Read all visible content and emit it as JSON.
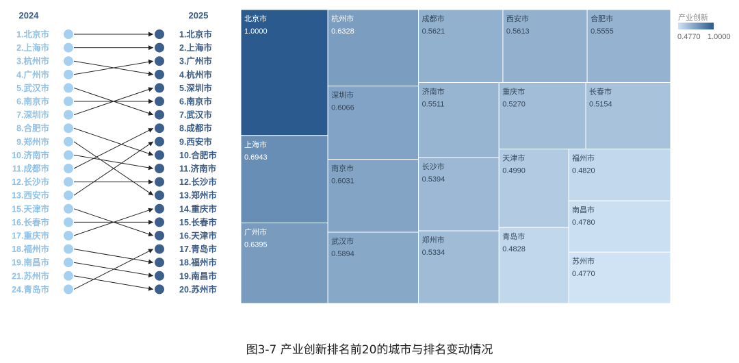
{
  "caption": "图3-7 产业创新排名前20的城市与排名变动情况",
  "colors": {
    "light_label": "#8fc0e6",
    "dark_label": "#3a5b86",
    "dot_light": "#a6d0ef",
    "dot_dark": "#3c5f8c",
    "tile_min": "#cfe3f4",
    "tile_max": "#2a5a8e"
  },
  "chart_data": [
    {
      "type": "bump",
      "left_header": "2024",
      "right_header": "2025",
      "left_labels": [
        "1.北京市",
        "2.上海市",
        "3.杭州市",
        "4.广州市",
        "5.武汉市",
        "6.南京市",
        "7.深圳市",
        "8.合肥市",
        "9.郑州市",
        "10.济南市",
        "11.成都市",
        "12.长沙市",
        "13.西安市",
        "15.天津市",
        "16.长春市",
        "17.重庆市",
        "18.福州市",
        "19.南昌市",
        "21.苏州市",
        "24.青岛市"
      ],
      "right_labels": [
        "1.北京市",
        "2.上海市",
        "3.广州市",
        "4.杭州市",
        "5.深圳市",
        "6.南京市",
        "7.武汉市",
        "8.成都市",
        "9.西安市",
        "10.合肥市",
        "11.济南市",
        "12.长沙市",
        "13.郑州市",
        "14.重庆市",
        "15.长春市",
        "16.天津市",
        "17.青岛市",
        "18.福州市",
        "19.南昌市",
        "20.苏州市"
      ],
      "links": [
        [
          1,
          1
        ],
        [
          2,
          2
        ],
        [
          3,
          4
        ],
        [
          4,
          3
        ],
        [
          5,
          7
        ],
        [
          6,
          6
        ],
        [
          7,
          5
        ],
        [
          8,
          10
        ],
        [
          9,
          13
        ],
        [
          10,
          11
        ],
        [
          11,
          8
        ],
        [
          12,
          12
        ],
        [
          13,
          9
        ],
        [
          15,
          16
        ],
        [
          16,
          15
        ],
        [
          17,
          14
        ],
        [
          18,
          18
        ],
        [
          19,
          19
        ],
        [
          21,
          20
        ],
        [
          24,
          17
        ]
      ]
    },
    {
      "type": "treemap",
      "legend_title": "产业创新",
      "min": 0.477,
      "max": 1.0,
      "min_label": "0.4770",
      "max_label": "1.0000",
      "cells": [
        {
          "name": "北京市",
          "value": 1.0,
          "label": "1.0000"
        },
        {
          "name": "上海市",
          "value": 0.6943,
          "label": "0.6943"
        },
        {
          "name": "广州市",
          "value": 0.6395,
          "label": "0.6395"
        },
        {
          "name": "杭州市",
          "value": 0.6328,
          "label": "0.6328"
        },
        {
          "name": "深圳市",
          "value": 0.6066,
          "label": "0.6066"
        },
        {
          "name": "南京市",
          "value": 0.6031,
          "label": "0.6031"
        },
        {
          "name": "武汉市",
          "value": 0.5894,
          "label": "0.5894"
        },
        {
          "name": "成都市",
          "value": 0.5621,
          "label": "0.5621"
        },
        {
          "name": "西安市",
          "value": 0.5613,
          "label": "0.5613"
        },
        {
          "name": "合肥市",
          "value": 0.5555,
          "label": "0.5555"
        },
        {
          "name": "济南市",
          "value": 0.5511,
          "label": "0.5511"
        },
        {
          "name": "长沙市",
          "value": 0.5394,
          "label": "0.5394"
        },
        {
          "name": "郑州市",
          "value": 0.5334,
          "label": "0.5334"
        },
        {
          "name": "重庆市",
          "value": 0.527,
          "label": "0.5270"
        },
        {
          "name": "长春市",
          "value": 0.5154,
          "label": "0.5154"
        },
        {
          "name": "天津市",
          "value": 0.499,
          "label": "0.4990"
        },
        {
          "name": "青岛市",
          "value": 0.4828,
          "label": "0.4828"
        },
        {
          "name": "福州市",
          "value": 0.482,
          "label": "0.4820"
        },
        {
          "name": "南昌市",
          "value": 0.478,
          "label": "0.4780"
        },
        {
          "name": "苏州市",
          "value": 0.477,
          "label": "0.4770"
        }
      ]
    }
  ]
}
